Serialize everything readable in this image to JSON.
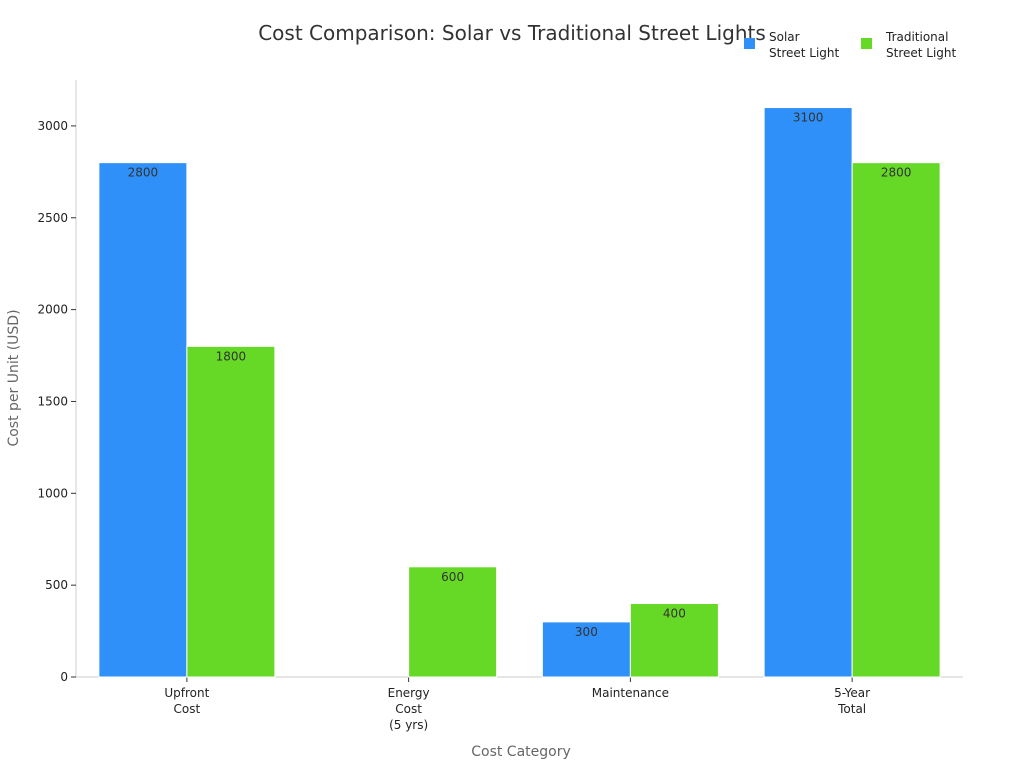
{
  "chart_data": {
    "type": "bar",
    "title": "Cost Comparison: Solar vs Traditional Street Lights",
    "xlabel": "Cost Category",
    "ylabel": "Cost per Unit (USD)",
    "ylim": [
      0,
      3250
    ],
    "yticks": [
      0,
      500,
      1000,
      1500,
      2000,
      2500,
      3000
    ],
    "grid": false,
    "legend_position": "top-right",
    "categories": [
      [
        "Upfront",
        "Cost"
      ],
      [
        "Energy",
        "Cost",
        "(5 yrs)"
      ],
      [
        "Maintenance"
      ],
      [
        "5-Year",
        "Total"
      ]
    ],
    "series": [
      {
        "name": [
          "Solar",
          "Street Light"
        ],
        "color": "#2E90F8",
        "values": [
          2800,
          0,
          300,
          3100
        ],
        "labels": [
          "2800",
          "",
          "300",
          "3100"
        ]
      },
      {
        "name": [
          "Traditional",
          "Street Light"
        ],
        "color": "#66D926",
        "values": [
          1800,
          600,
          400,
          2800
        ],
        "labels": [
          "1800",
          "600",
          "400",
          "2800"
        ]
      }
    ]
  }
}
